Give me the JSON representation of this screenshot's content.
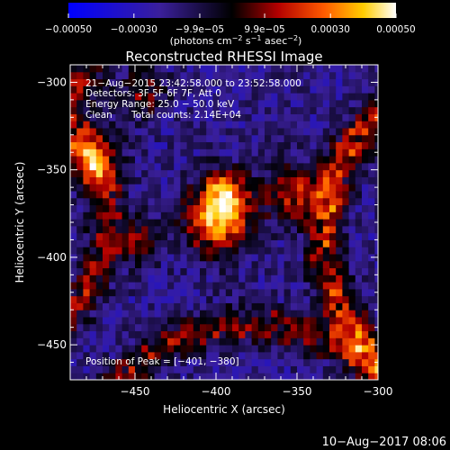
{
  "colorbar": {
    "tick_labels": [
      "−0.00050",
      "−0.00030",
      "−9.9e−05",
      "9.9e−05",
      "0.00030",
      "0.00050"
    ],
    "tick_values": [
      -0.0005,
      -0.0003,
      -9.9e-05,
      9.9e-05,
      0.0003,
      0.0005
    ],
    "range": [
      -0.0005,
      0.0005
    ],
    "unit_label_parts": {
      "p1": "(photons cm",
      "e1": "−2",
      "p2": " s",
      "e2": "−1",
      "p3": " asec",
      "e3": "−2",
      "p4": ")"
    },
    "colors": [
      "#0000ff",
      "#3a1f9a",
      "#000000",
      "#b30000",
      "#ff5a00",
      "#ffcc00",
      "#ffffff"
    ]
  },
  "chart_data": {
    "type": "heatmap",
    "title": "Reconstructed RHESSI Image",
    "xlabel": "Heliocentric X (arcsec)",
    "ylabel": "Heliocentric Y (arcsec)",
    "xlim": [
      -490,
      -300
    ],
    "ylim": [
      -470,
      -290
    ],
    "x_ticks": [
      -450,
      -400,
      -350,
      -300
    ],
    "x_tick_labels": [
      "−450",
      "−400",
      "−350",
      "−300"
    ],
    "y_ticks": [
      -450,
      -400,
      -350,
      -300
    ],
    "y_tick_labels": [
      "−450",
      "−400",
      "−350",
      "−300"
    ],
    "value_range": [
      -0.0005,
      0.0005
    ],
    "peak": {
      "x": -401,
      "y": -380,
      "value": 0.0005
    },
    "grid": false,
    "annotations": {
      "time_range": "21−Aug−2015 23:42:58.000 to 23:52:58.000",
      "detectors": "Detectors: 3F 5F 6F 7F, Att 0",
      "energy": "Energy Range: 25.0 − 50.0 keV",
      "method": "Clean",
      "counts": "Total counts: 2.14E+04",
      "peak_position": "Position of Peak = [−401, −380]"
    }
  },
  "footer": {
    "timestamp": "10−Aug−2017 08:06"
  }
}
